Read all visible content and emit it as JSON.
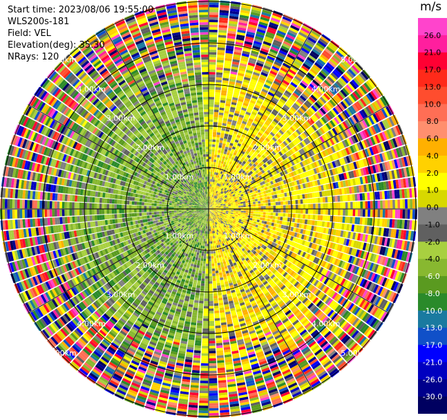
{
  "header": {
    "start_time": "Start time: 2023/08/06 19:55:00",
    "instrument": "WLS200s-181",
    "field": "Field: VEL",
    "elevation": "Elevation(deg): 35.30",
    "nrays": "NRays: 120"
  },
  "colorbar": {
    "unit": "m/s",
    "ticks": [
      "26.0",
      "21.0",
      "17.0",
      "13.0",
      "10.0",
      "8.0",
      "6.0",
      "4.0",
      "2.0",
      "1.0",
      "0.0",
      "-1.0",
      "-2.0",
      "-4.0",
      "-6.0",
      "-8.0",
      "-10.0",
      "-13.0",
      "-17.0",
      "-21.0",
      "-26.0",
      "-30.0"
    ],
    "colors": [
      "#ff44cc",
      "#ff1f9e",
      "#ff0033",
      "#ff2a1a",
      "#ff4d2e",
      "#ff6e55",
      "#ff8f6e",
      "#ffb000",
      "#ffd100",
      "#ffff00",
      "#d8d800",
      "#808080",
      "#606060",
      "#a8d040",
      "#88b830",
      "#5a9a20",
      "#2a8a2a",
      "#1a7aa0",
      "#1050c8",
      "#0000ff",
      "#0000c0",
      "#00008c",
      "#000060"
    ]
  },
  "chart_data": {
    "type": "heatmap",
    "description_field": "VEL",
    "n_rays": 120,
    "range_rings_km": [
      1.0,
      2.0,
      3.0,
      4.0,
      5.0
    ],
    "ring_labels": [
      "1.00km",
      "2.00km",
      "3.00km",
      "4.00km",
      "5.00km"
    ],
    "azimuth_spokes_deg": [
      0,
      30,
      60,
      90,
      120,
      150,
      180,
      210,
      240,
      270,
      300,
      330
    ],
    "colorbar_range": [
      -30.0,
      26.0
    ],
    "dominant_pattern": {
      "west_sector": "negative (-2 to -8 m/s, greens)",
      "east_sector": "positive (1 to 6 m/s, yellows/oranges)",
      "outer_ranges": "noisy, all colors"
    }
  }
}
